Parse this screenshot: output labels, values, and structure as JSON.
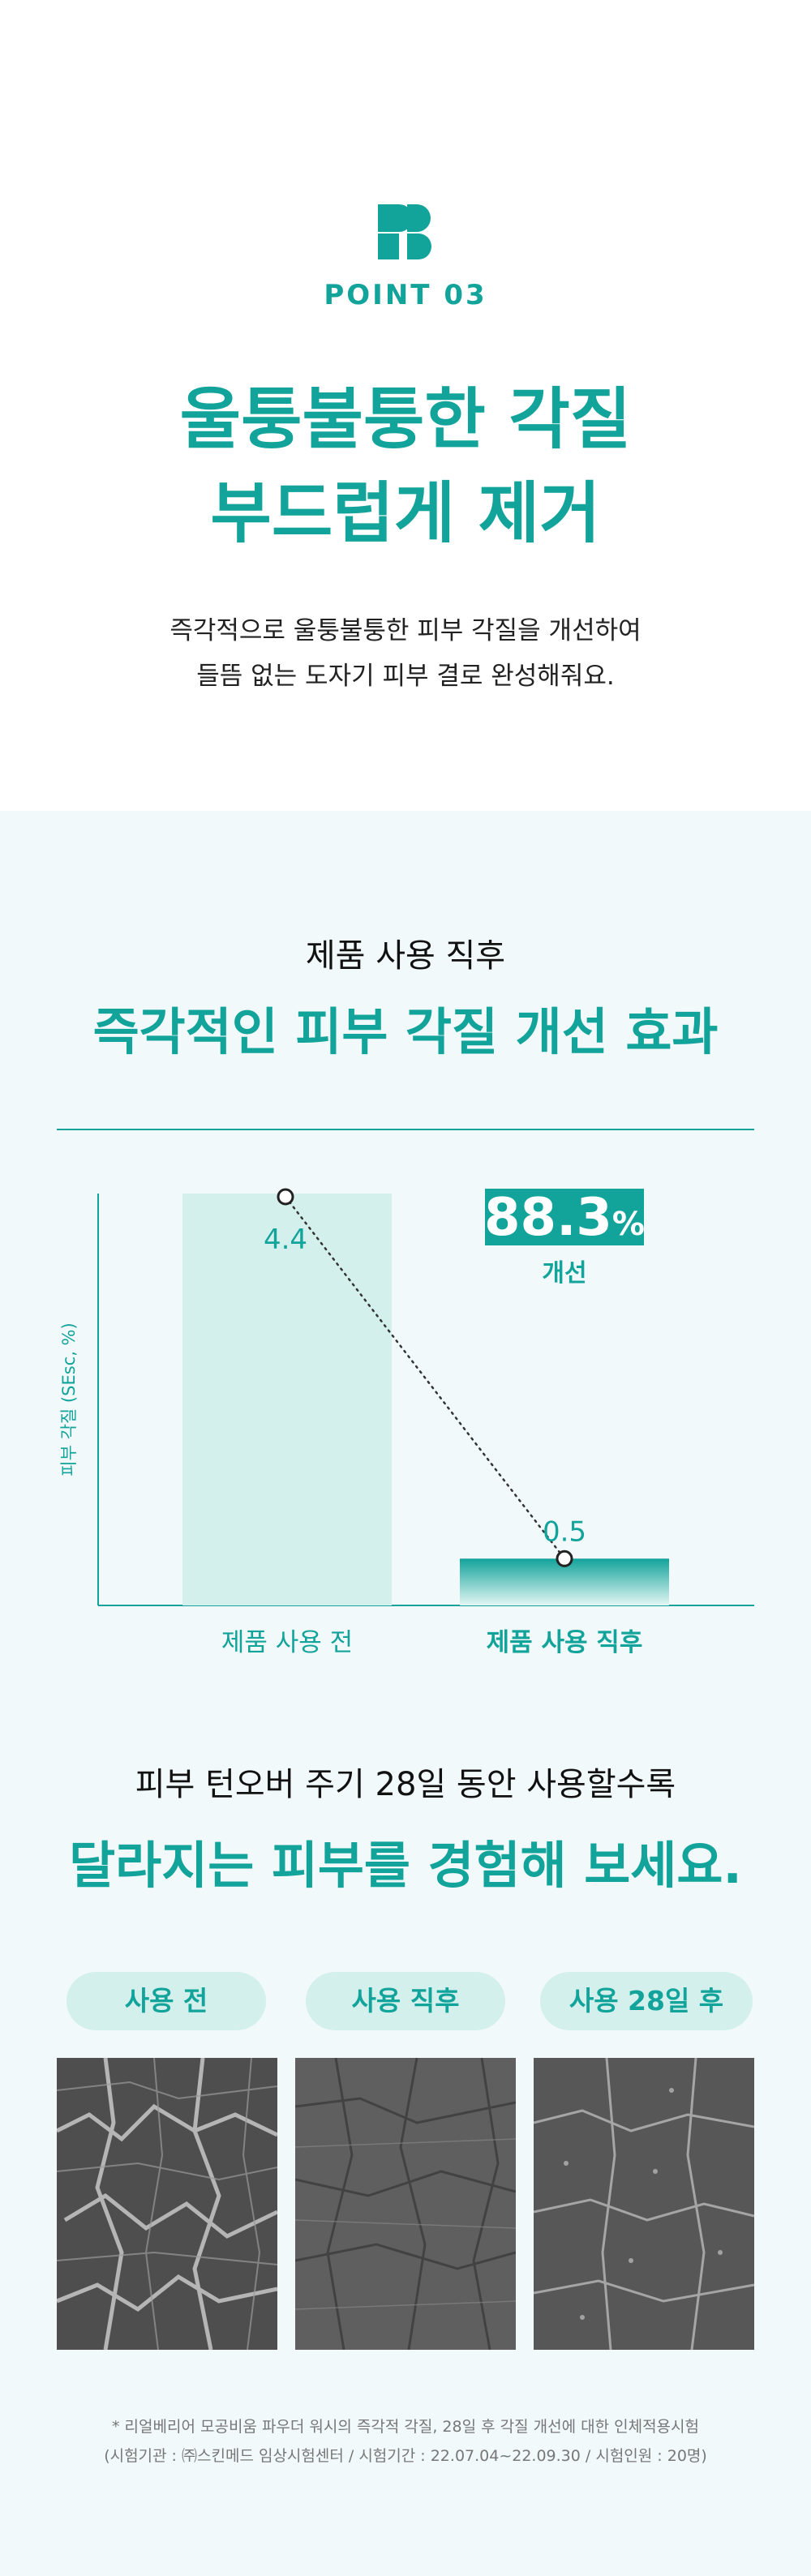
{
  "point_label": "POINT 03",
  "hero": {
    "title_line1": "울퉁불퉁한 각질",
    "title_line2": "부드럽게 제거",
    "desc_line1": "즉각적으로 울퉁불퉁한 피부 각질을 개선하여",
    "desc_line2": "들뜸 없는 도자기 피부 결로 완성해줘요."
  },
  "section1": {
    "subtitle": "제품 사용 직후",
    "title": "즉각적인 피부 각질 개선 효과"
  },
  "chart_data": {
    "type": "bar",
    "categories": [
      "제품 사용 전",
      "제품 사용 직후"
    ],
    "values": [
      4.4,
      0.5
    ],
    "value_labels": [
      "4.4",
      "0.5"
    ],
    "ylabel": "피부 각질 (SEsc, %)",
    "ylim": [
      0,
      4.4
    ],
    "grid": false,
    "improvement_number": "88.3",
    "improvement_unit": "%",
    "improvement_caption": "개선",
    "colors": {
      "before": "#d3f0ec",
      "after": "#12a39b",
      "accent": "#12a39b"
    }
  },
  "section2": {
    "subtitle": "피부 턴오버 주기 28일 동안 사용할수록",
    "title": "달라지는 피부를 경험해 보세요."
  },
  "comparison": {
    "labels": [
      "사용 전",
      "사용 직후",
      "사용 28일 후"
    ],
    "photo_icons": [
      "skin-texture-before-photo",
      "skin-texture-after-photo",
      "skin-texture-28days-photo"
    ]
  },
  "footnote": {
    "line1": "* 리얼베리어 모공비움 파우더 워시의 즉각적 각질, 28일 후 각질 개선에 대한 인체적용시험",
    "line2": "(시험기관 : ㈜스킨메드 임상시험센터 / 시험기간 : 22.07.04~22.09.30 / 시험인원 : 20명)"
  },
  "colors": {
    "accent": "#12a39b",
    "panel_bg": "#f1f9fa",
    "pill_bg": "#d3f0ec"
  }
}
